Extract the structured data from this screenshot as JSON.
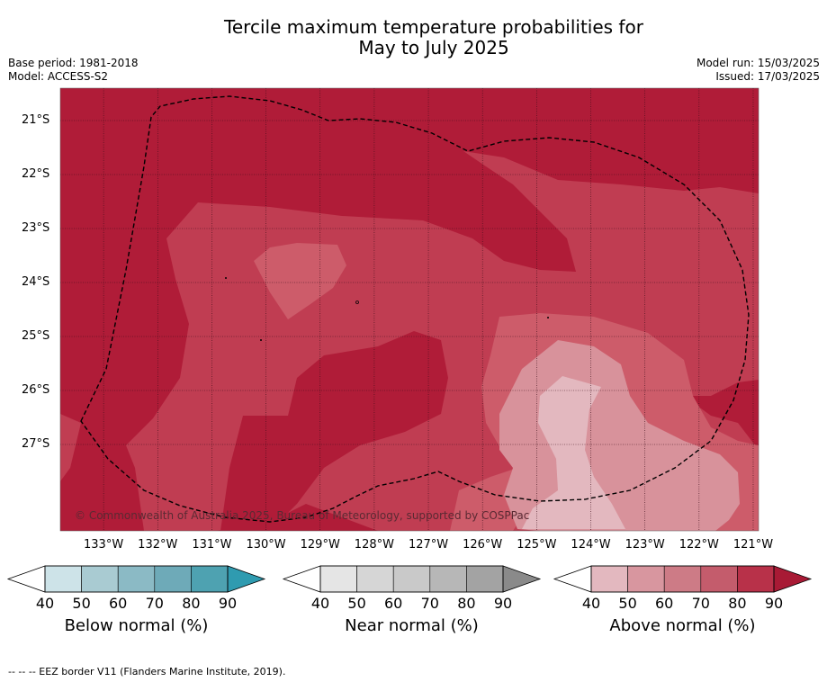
{
  "title_line1": "Tercile maximum temperature probabilities for",
  "title_line2": "May to July 2025",
  "base_period": "Base period: 1981-2018",
  "model": "Model: ACCESS-S2",
  "model_run": "Model run: 15/03/2025",
  "issued": "Issued: 17/03/2025",
  "copyright": "© Commonwealth of Australia 2025, Bureau of Meteorology, supported by COSPPac",
  "footer": "--  --  -- EEZ border V11 (Flanders Marine Institute, 2019).",
  "chart_data": {
    "type": "heatmap",
    "title": "Tercile maximum temperature probabilities for May to July 2025",
    "lat_labels": [
      "21°S",
      "22°S",
      "23°S",
      "24°S",
      "25°S",
      "26°S",
      "27°S"
    ],
    "lon_labels": [
      "133°W",
      "132°W",
      "131°W",
      "130°W",
      "129°W",
      "128°W",
      "127°W",
      "126°W",
      "125°W",
      "124°W",
      "123°W",
      "122°W",
      "121°W"
    ],
    "lat_range": [
      -28.6,
      -20.4
    ],
    "lon_range": [
      -133.8,
      -120.9
    ],
    "field": "Above normal probability (%)",
    "levels": [
      {
        "range": "80-90",
        "color": "#b01c38"
      },
      {
        "range": "70-80",
        "color": "#c03d52"
      },
      {
        "range": "60-70",
        "color": "#cd5c6a"
      },
      {
        "range": "50-60",
        "color": "#d8929b"
      },
      {
        "range": "40-50",
        "color": "#e3b8bf"
      }
    ],
    "colorbars": [
      {
        "label": "Below normal (%)",
        "ticks": [
          "40",
          "50",
          "60",
          "70",
          "80",
          "90"
        ],
        "colors": [
          "#cde3e8",
          "#a9cbd2",
          "#8bbac5",
          "#6eaab8",
          "#4ea2b1",
          "#2f9bb0"
        ]
      },
      {
        "label": "Near normal (%)",
        "ticks": [
          "40",
          "50",
          "60",
          "70",
          "80",
          "90"
        ],
        "colors": [
          "#e5e5e5",
          "#d6d6d6",
          "#c9c9c9",
          "#b7b7b7",
          "#a3a3a3",
          "#8a8a8a"
        ]
      },
      {
        "label": "Above normal (%)",
        "ticks": [
          "40",
          "50",
          "60",
          "70",
          "80",
          "90"
        ],
        "colors": [
          "#e3b8bf",
          "#d8969f",
          "#cd7b86",
          "#c45c6c",
          "#b83149",
          "#a81a35"
        ]
      }
    ],
    "eez_border": "EEZ border V11 (Flanders Marine Institute, 2019)"
  }
}
